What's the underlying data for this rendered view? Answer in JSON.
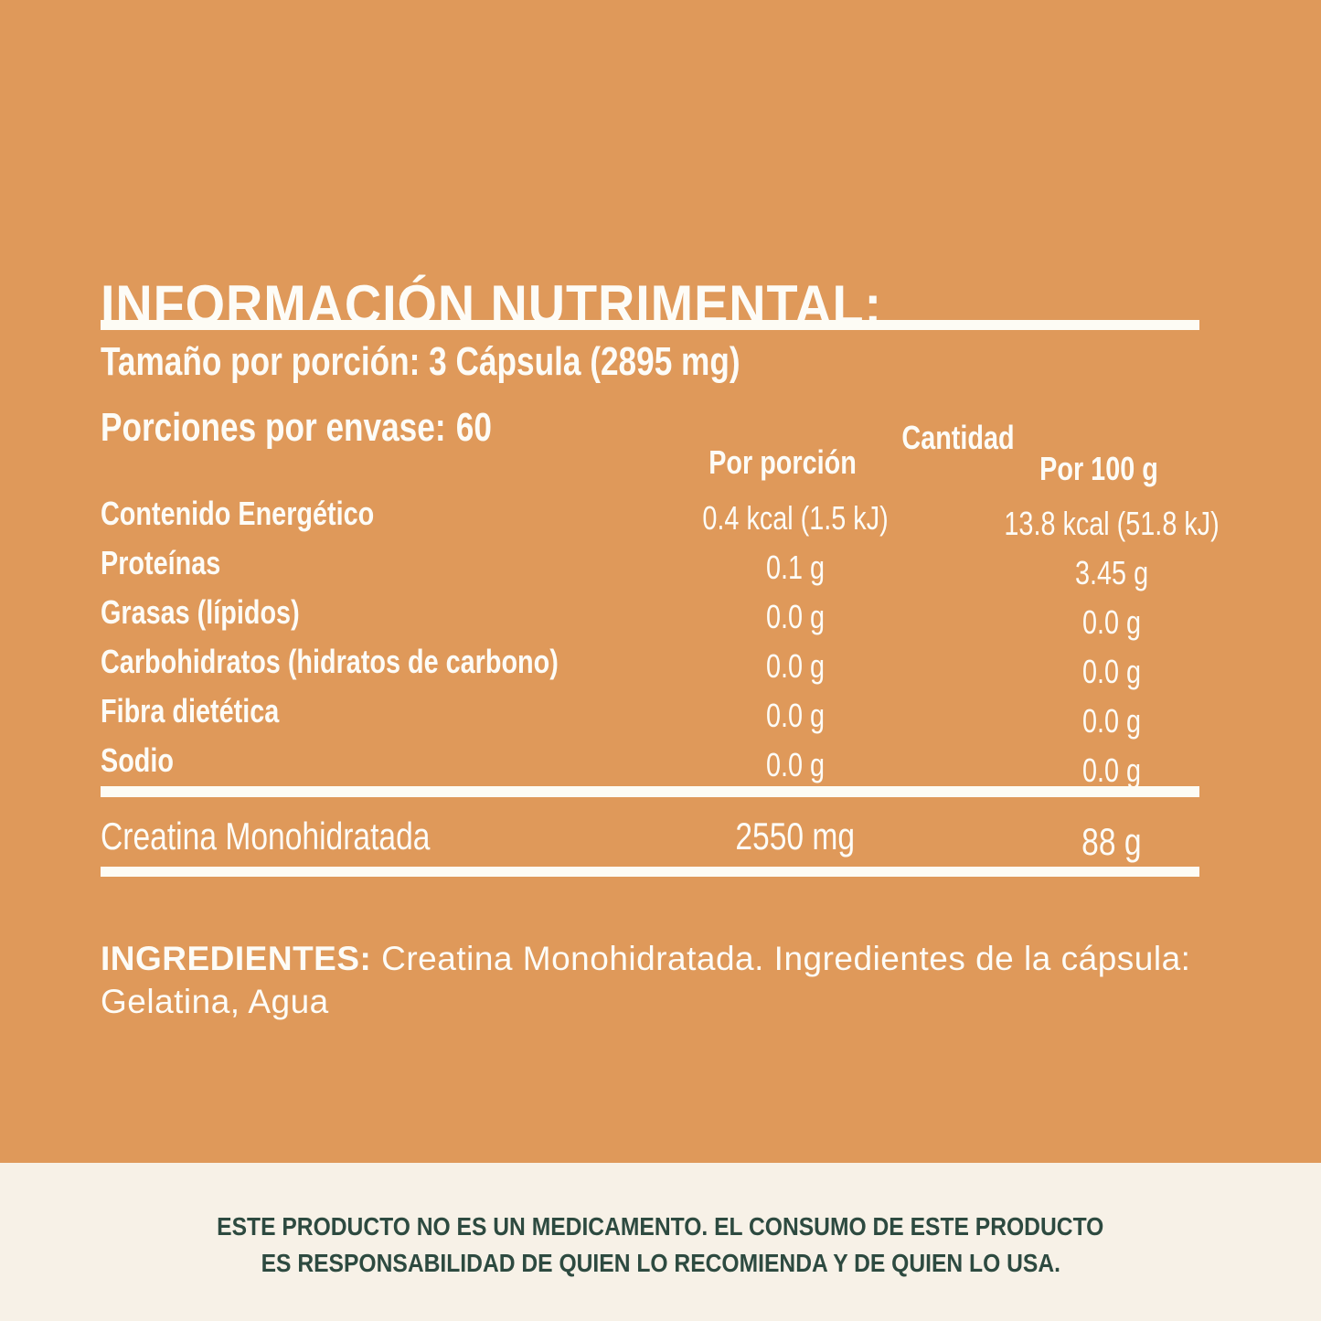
{
  "colors": {
    "panel_orange": "#df995a",
    "background_cream": "#f7f1e7",
    "text_white": "#fdfcf7",
    "disclaimer_green": "#2d4a40"
  },
  "title": "INFORMACIÓN NUTRIMENTAL:",
  "serving_info": {
    "serving_size": "Tamaño por porción: 3 Cápsula (2895 mg)",
    "servings_per_container_label": "Porciones por envase:",
    "servings_per_container_value": "60"
  },
  "table": {
    "header": {
      "group_label": "Cantidad",
      "per_serving_label": "Por porción",
      "per_100g_label": "Por 100 g"
    },
    "rows": [
      {
        "label": "Contenido Energético",
        "per_serving": "0.4 kcal (1.5 kJ)",
        "per_100g": "13.8 kcal (51.8 kJ)"
      },
      {
        "label": "Proteínas",
        "per_serving": "0.1 g",
        "per_100g": "3.45 g"
      },
      {
        "label": "Grasas (lípidos)",
        "per_serving": "0.0 g",
        "per_100g": "0.0 g"
      },
      {
        "label": "Carbohidratos (hidratos de carbono)",
        "per_serving": "0.0 g",
        "per_100g": "0.0 g"
      },
      {
        "label": "Fibra dietética",
        "per_serving": "0.0 g",
        "per_100g": "0.0 g"
      },
      {
        "label": "Sodio",
        "per_serving": "0.0 g",
        "per_100g": "0.0 g"
      }
    ],
    "supplement_row": {
      "label": "Creatina Monohidratada",
      "per_serving": "2550 mg",
      "per_100g": "88 g"
    }
  },
  "ingredients": {
    "label": "INGREDIENTES:",
    "text": "Creatina Monohidratada. Ingredientes de la cápsula: Gelatina, Agua"
  },
  "disclaimer": {
    "line1": "ESTE PRODUCTO NO ES UN MEDICAMENTO. EL CONSUMO DE ESTE PRODUCTO",
    "line2": "ES RESPONSABILIDAD DE QUIEN LO RECOMIENDA Y DE QUIEN LO USA."
  }
}
